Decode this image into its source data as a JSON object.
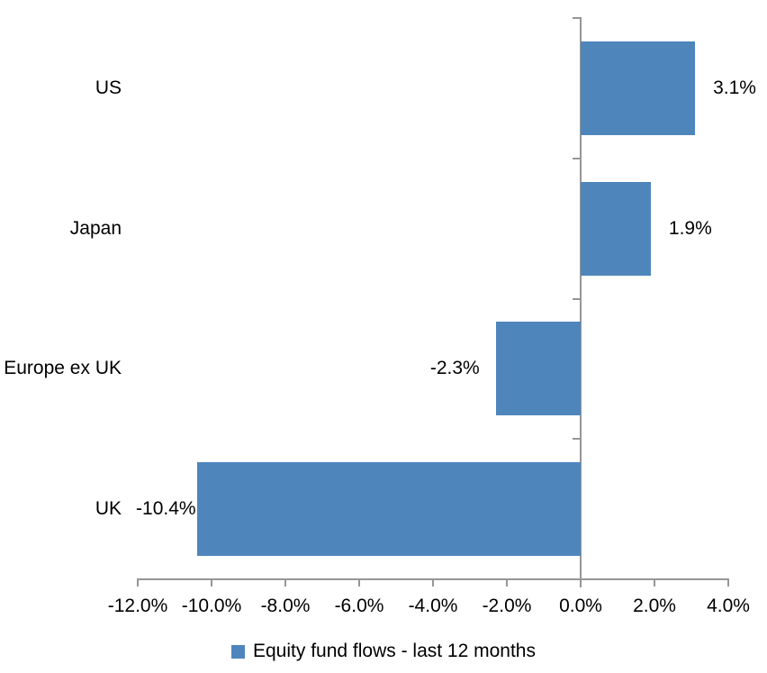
{
  "chart_data": {
    "type": "bar",
    "orientation": "horizontal",
    "categories": [
      "US",
      "Japan",
      "Europe ex UK",
      "UK"
    ],
    "series": [
      {
        "name": "Equity fund flows - last 12 months",
        "values": [
          3.1,
          1.9,
          -2.3,
          -10.4
        ],
        "labels": [
          "3.1%",
          "1.9%",
          "-2.3%",
          "-10.4%"
        ],
        "color": "#4E86BC"
      }
    ],
    "x_axis": {
      "min": -12,
      "max": 4,
      "step": 2,
      "tick_labels": [
        "-12.0%",
        "-10.0%",
        "-8.0%",
        "-6.0%",
        "-4.0%",
        "-2.0%",
        "0.0%",
        "2.0%",
        "4.0%"
      ],
      "format": "percent"
    },
    "legend": {
      "position": "bottom",
      "entries": [
        "Equity fund flows - last 12 months"
      ]
    },
    "grid": false,
    "colors": {
      "bar": "#4E86BC",
      "axis": "#969696",
      "text": "#000000",
      "background": "#FFFFFF"
    }
  }
}
